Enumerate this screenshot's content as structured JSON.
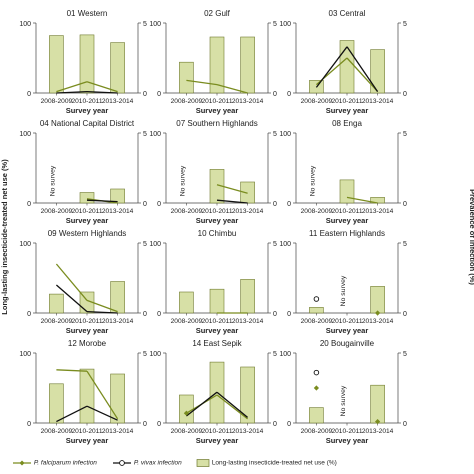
{
  "y_axis_left_label": "Long-lasting insecticide-treated net use (%)",
  "y_axis_right_label": "Prevalence of infection (%)",
  "x_axis_label": "Survey year",
  "no_survey_text": "No survey",
  "legend": {
    "pf": "P. falciparum infection",
    "pv": "P. vivax infection",
    "net": "Long-lasting insecticide-treated net use (%)"
  },
  "colors": {
    "bar_fill": "#d7e0a6",
    "bar_stroke": "#6f7a2f",
    "pf": "#7a8c1f",
    "pv": "#111111"
  },
  "chart_data": {
    "type": "bar",
    "categories": [
      "2008-2009",
      "2010-2011",
      "2013-2014"
    ],
    "ylim_left": [
      0,
      100
    ],
    "ylim_right": [
      0,
      5
    ],
    "panels": [
      {
        "title": "01 Western",
        "no_survey": null,
        "net_use": [
          82,
          83,
          72
        ],
        "pf": [
          0.1,
          0.8,
          0.1
        ],
        "pv": [
          0.0,
          0.1,
          0.0
        ],
        "pf_markers": [
          false,
          false,
          false
        ],
        "pv_markers": [
          false,
          false,
          false
        ]
      },
      {
        "title": "02 Gulf",
        "no_survey": null,
        "net_use": [
          44,
          80,
          80
        ],
        "pf": [
          0.9,
          0.6,
          0.0
        ],
        "pv": [
          null,
          null,
          null
        ],
        "pf_markers": [
          false,
          false,
          false
        ],
        "pv_markers": [
          false,
          false,
          false
        ]
      },
      {
        "title": "03 Central",
        "no_survey": null,
        "net_use": [
          18,
          75,
          62
        ],
        "pf": [
          0.6,
          2.5,
          0.1
        ],
        "pv": [
          0.4,
          3.3,
          0.1
        ],
        "pf_markers": [
          false,
          false,
          false
        ],
        "pv_markers": [
          false,
          false,
          false
        ]
      },
      {
        "title": "04 National Capital District",
        "no_survey": 0,
        "net_use": [
          null,
          15,
          20
        ],
        "pf": [
          null,
          0.3,
          0.0
        ],
        "pv": [
          null,
          0.2,
          0.1
        ],
        "pf_markers": [
          false,
          false,
          false
        ],
        "pv_markers": [
          false,
          false,
          false
        ]
      },
      {
        "title": "07 Southern Highlands",
        "no_survey": 0,
        "net_use": [
          null,
          48,
          30
        ],
        "pf": [
          null,
          1.3,
          0.7
        ],
        "pv": [
          null,
          0.2,
          0.0
        ],
        "pf_markers": [
          false,
          false,
          false
        ],
        "pv_markers": [
          false,
          false,
          false
        ]
      },
      {
        "title": "08 Enga",
        "no_survey": 0,
        "net_use": [
          null,
          33,
          8
        ],
        "pf": [
          null,
          0.4,
          0.0
        ],
        "pv": [
          null,
          null,
          null
        ],
        "pf_markers": [
          false,
          false,
          false
        ],
        "pv_markers": [
          false,
          false,
          false
        ]
      },
      {
        "title": "09 Western Highlands",
        "no_survey": null,
        "net_use": [
          27,
          30,
          45
        ],
        "pf": [
          3.5,
          0.9,
          0.1
        ],
        "pv": [
          2.0,
          0.1,
          0.0
        ],
        "pf_markers": [
          false,
          false,
          false
        ],
        "pv_markers": [
          false,
          false,
          false
        ]
      },
      {
        "title": "10 Chimbu",
        "no_survey": null,
        "net_use": [
          30,
          34,
          48
        ],
        "pf": [
          null,
          0.0,
          0.0
        ],
        "pv": [
          null,
          null,
          null
        ],
        "pf_markers": [
          false,
          false,
          false
        ],
        "pv_markers": [
          false,
          false,
          false
        ]
      },
      {
        "title": "11 Eastern Highlands",
        "no_survey": 1,
        "net_use": [
          8,
          null,
          38
        ],
        "pf": [
          1.0,
          null,
          0.0
        ],
        "pv": [
          1.0,
          null,
          null
        ],
        "pf_markers": [
          true,
          false,
          true
        ],
        "pv_markers": [
          true,
          false,
          false
        ]
      },
      {
        "title": "12 Morobe",
        "no_survey": null,
        "net_use": [
          56,
          77,
          70
        ],
        "pf": [
          3.8,
          3.7,
          0.3
        ],
        "pv": [
          0.1,
          1.2,
          0.2
        ],
        "pf_markers": [
          false,
          false,
          false
        ],
        "pv_markers": [
          false,
          false,
          false
        ]
      },
      {
        "title": "14 East Sepik",
        "no_survey": null,
        "net_use": [
          40,
          87,
          80
        ],
        "pf": [
          0.7,
          2.0,
          0.3
        ],
        "pv": [
          0.5,
          2.2,
          0.4
        ],
        "pf_markers": [
          true,
          false,
          false
        ],
        "pv_markers": [
          false,
          false,
          false
        ]
      },
      {
        "title": "20 Bougainville",
        "no_survey": 1,
        "net_use": [
          22,
          null,
          54
        ],
        "pf": [
          2.5,
          null,
          0.1
        ],
        "pv": [
          3.6,
          null,
          null
        ],
        "pf_markers": [
          true,
          false,
          true
        ],
        "pv_markers": [
          true,
          false,
          false
        ]
      }
    ]
  }
}
